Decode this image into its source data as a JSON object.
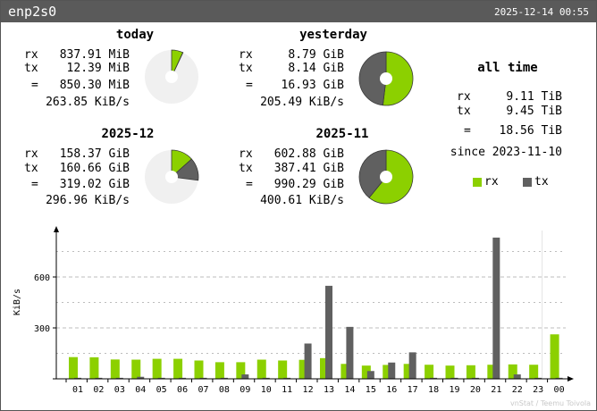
{
  "header": {
    "interface": "enp2s0",
    "timestamp": "2025-12-14 00:55"
  },
  "labels": {
    "rx": "rx",
    "tx": "tx",
    "eq": "="
  },
  "today": {
    "title": "today",
    "rx": "837.91 MiB",
    "tx": "12.39 MiB",
    "total": "850.30 MiB",
    "rate": "263.85 KiB/s",
    "rx_value": 837.91,
    "tx_value": 12.39
  },
  "yesterday": {
    "title": "yesterday",
    "rx": "8.79 GiB",
    "tx": "8.14 GiB",
    "total": "16.93 GiB",
    "rate": "205.49 KiB/s",
    "rx_value": 8.79,
    "tx_value": 8.14
  },
  "month_current": {
    "title": "2025-12",
    "rx": "158.37 GiB",
    "tx": "160.66 GiB",
    "total": "319.02 GiB",
    "rate": "296.96 KiB/s",
    "rx_value": 158.37,
    "tx_value": 160.66
  },
  "month_previous": {
    "title": "2025-11",
    "rx": "602.88 GiB",
    "tx": "387.41 GiB",
    "total": "990.29 GiB",
    "rate": "400.61 KiB/s",
    "rx_value": 602.88,
    "tx_value": 387.41
  },
  "all_time": {
    "title": "all time",
    "rx": "9.11 TiB",
    "tx": "9.45 TiB",
    "total": "18.56 TiB",
    "since": "since 2023-11-10"
  },
  "legend": {
    "rx": "rx",
    "tx": "tx"
  },
  "colors": {
    "rx": "#8cd000",
    "tx": "#606060",
    "pie_bg": "#f0f0f0"
  },
  "footer": "vnStat / Teemu Toivola",
  "chart_data": {
    "type": "bar",
    "ylabel": "KiB/s",
    "ylim": [
      0,
      800
    ],
    "yticks": [
      300,
      600
    ],
    "categories": [
      "01",
      "02",
      "03",
      "04",
      "05",
      "06",
      "07",
      "08",
      "09",
      "10",
      "11",
      "12",
      "13",
      "14",
      "15",
      "16",
      "17",
      "18",
      "19",
      "20",
      "21",
      "22",
      "23",
      "00"
    ],
    "series": [
      {
        "name": "rx",
        "values": [
          128,
          127,
          114,
          113,
          118,
          118,
          108,
          98,
          98,
          113,
          108,
          112,
          122,
          88,
          78,
          82,
          88,
          83,
          78,
          80,
          83,
          85,
          83,
          262
        ]
      },
      {
        "name": "tx",
        "values": [
          6,
          6,
          6,
          12,
          6,
          6,
          6,
          6,
          26,
          6,
          6,
          208,
          548,
          306,
          46,
          96,
          156,
          6,
          6,
          6,
          832,
          26,
          6,
          6
        ]
      }
    ]
  }
}
